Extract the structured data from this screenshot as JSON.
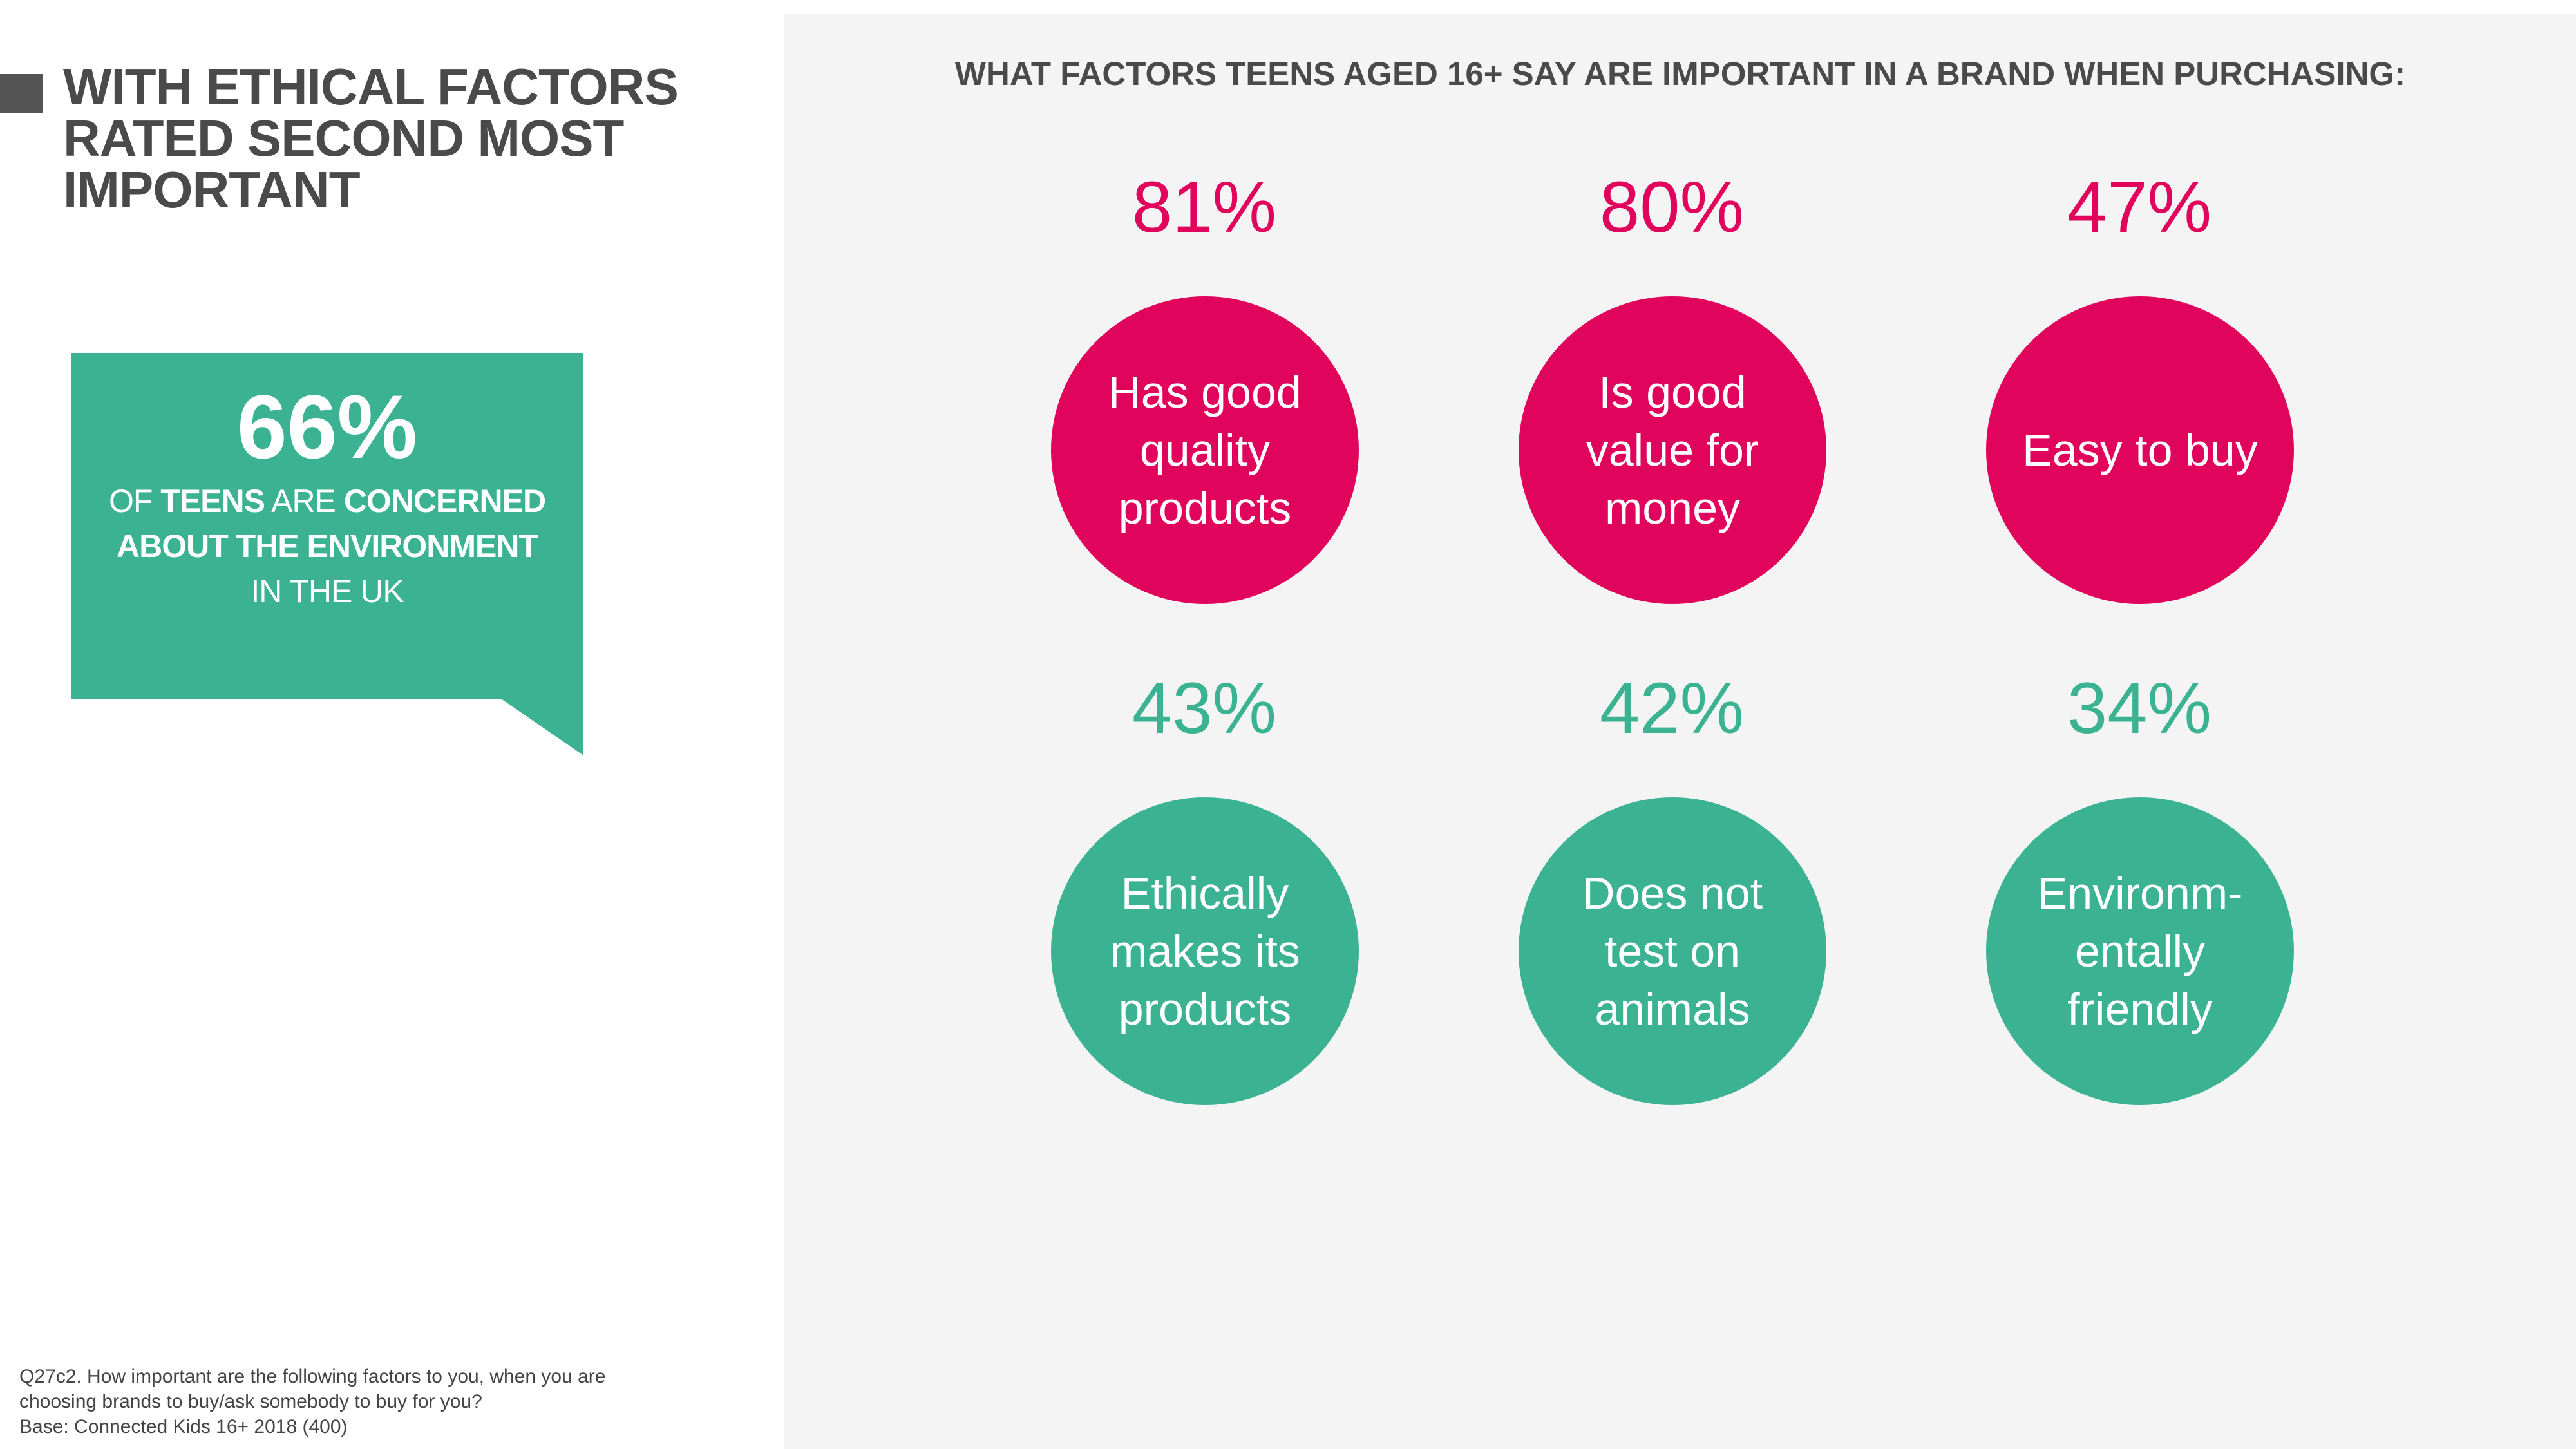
{
  "headline": {
    "lines": [
      "WITH ETHICAL FACTORS",
      "RATED SECOND MOST",
      "IMPORTANT"
    ]
  },
  "callout": {
    "stat": "66%",
    "line1": {
      "a": "OF ",
      "b": "TEENS",
      "c": " ARE ",
      "d": "CONCERNED"
    },
    "line2": "ABOUT THE ENVIRONMENT",
    "line3": "IN THE UK",
    "color": "#3bb393"
  },
  "panel": {
    "title": "WHAT FACTORS TEENS AGED 16+ SAY ARE IMPORTANT IN A BRAND WHEN PURCHASING:"
  },
  "factors": [
    {
      "pct": "81%",
      "value": 81,
      "label": "Has good quality products",
      "color": "#e0045c"
    },
    {
      "pct": "80%",
      "value": 80,
      "label": "Is good value for money",
      "color": "#e0045c"
    },
    {
      "pct": "47%",
      "value": 47,
      "label": "Easy to buy",
      "color": "#e0045c"
    },
    {
      "pct": "43%",
      "value": 43,
      "label": "Ethically makes its products",
      "color": "#3bb393"
    },
    {
      "pct": "42%",
      "value": 42,
      "label": "Does not test on animals",
      "color": "#3bb393"
    },
    {
      "pct": "34%",
      "value": 34,
      "label": "Environm-entally friendly",
      "color": "#3bb393"
    }
  ],
  "footnote": {
    "line1": "Q27c2. How important are the following factors to you, when you are",
    "line2": "choosing brands to buy/ask somebody to buy for you?",
    "line3": "Base: Connected Kids 16+ 2018 (400)"
  }
}
